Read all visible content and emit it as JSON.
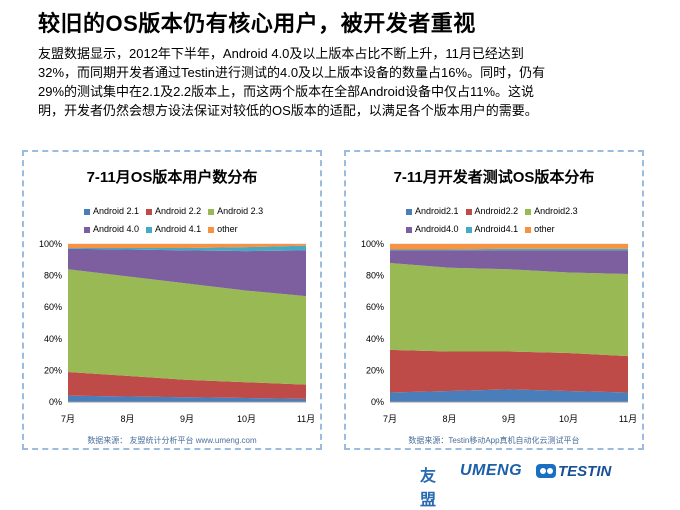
{
  "title": "较旧的OS版本仍有核心用户，被开发者重视",
  "paragraph": [
    "友盟数据显示，2012年下半年，Android 4.0及以上版本占比不断上升，11月已经达到",
    "32%，而同期开发者通过Testin进行测试的4.0及以上版本设备的数量占16%。同时，仍有",
    "29%的测试集中在2.1及2.2版本上，而这两个版本在全部Android设备中仅占11%。这说",
    "明，开发者仍然会想方设法保证对较低的OS版本的适配，以满足各个版本用户的需要。"
  ],
  "footer": {
    "logo_youmeng": "友盟",
    "logo_umeng": "UMENG",
    "logo_testin": "TESTIN"
  },
  "chart_data": [
    {
      "type": "area",
      "stacked": true,
      "title": "7-11月OS版本用户数分布",
      "source": "数据来源： 友盟统计分析平台 www.umeng.com",
      "categories": [
        "7月",
        "8月",
        "9月",
        "10月",
        "11月"
      ],
      "yticks": [
        "0%",
        "20%",
        "40%",
        "60%",
        "80%",
        "100%"
      ],
      "ylim": [
        0,
        100
      ],
      "grid": true,
      "legend_position": "top",
      "series": [
        {
          "name": "Android 2.1",
          "color": "#4a7ebb",
          "values": [
            4,
            3.5,
            3,
            2.5,
            2
          ]
        },
        {
          "name": "Android 2.2",
          "color": "#be4b48",
          "values": [
            15,
            13,
            11,
            10,
            9
          ]
        },
        {
          "name": "Android 2.3",
          "color": "#98b954",
          "values": [
            65,
            63,
            61,
            58,
            56
          ]
        },
        {
          "name": "Android 4.0",
          "color": "#7d5fa0",
          "values": [
            13,
            17,
            21,
            25,
            29
          ]
        },
        {
          "name": "Android 4.1",
          "color": "#46aac5",
          "values": [
            0.5,
            1,
            1.5,
            2.5,
            3
          ]
        },
        {
          "name": "other",
          "color": "#f69240",
          "values": [
            2.5,
            2.5,
            2.5,
            2,
            1
          ]
        }
      ]
    },
    {
      "type": "area",
      "stacked": true,
      "title": "7-11月开发者测试OS版本分布",
      "source": "数据来源：Testin移动App真机自动化云测试平台",
      "categories": [
        "7月",
        "8月",
        "9月",
        "10月",
        "11月"
      ],
      "yticks": [
        "0%",
        "20%",
        "40%",
        "60%",
        "80%",
        "100%"
      ],
      "ylim": [
        0,
        100
      ],
      "grid": true,
      "legend_position": "top",
      "series": [
        {
          "name": "Android2.1",
          "color": "#4a7ebb",
          "values": [
            6,
            7,
            8,
            7,
            6
          ]
        },
        {
          "name": "Android2.2",
          "color": "#be4b48",
          "values": [
            27,
            25,
            24,
            24,
            23
          ]
        },
        {
          "name": "Android2.3",
          "color": "#98b954",
          "values": [
            55,
            53,
            52,
            51,
            52
          ]
        },
        {
          "name": "Android4.0",
          "color": "#7d5fa0",
          "values": [
            8,
            11,
            12,
            14,
            15
          ]
        },
        {
          "name": "Android4.1",
          "color": "#46aac5",
          "values": [
            0.5,
            0.5,
            1,
            1,
            1
          ]
        },
        {
          "name": "other",
          "color": "#f69240",
          "values": [
            3.5,
            3.5,
            3,
            3,
            3
          ]
        }
      ]
    }
  ]
}
